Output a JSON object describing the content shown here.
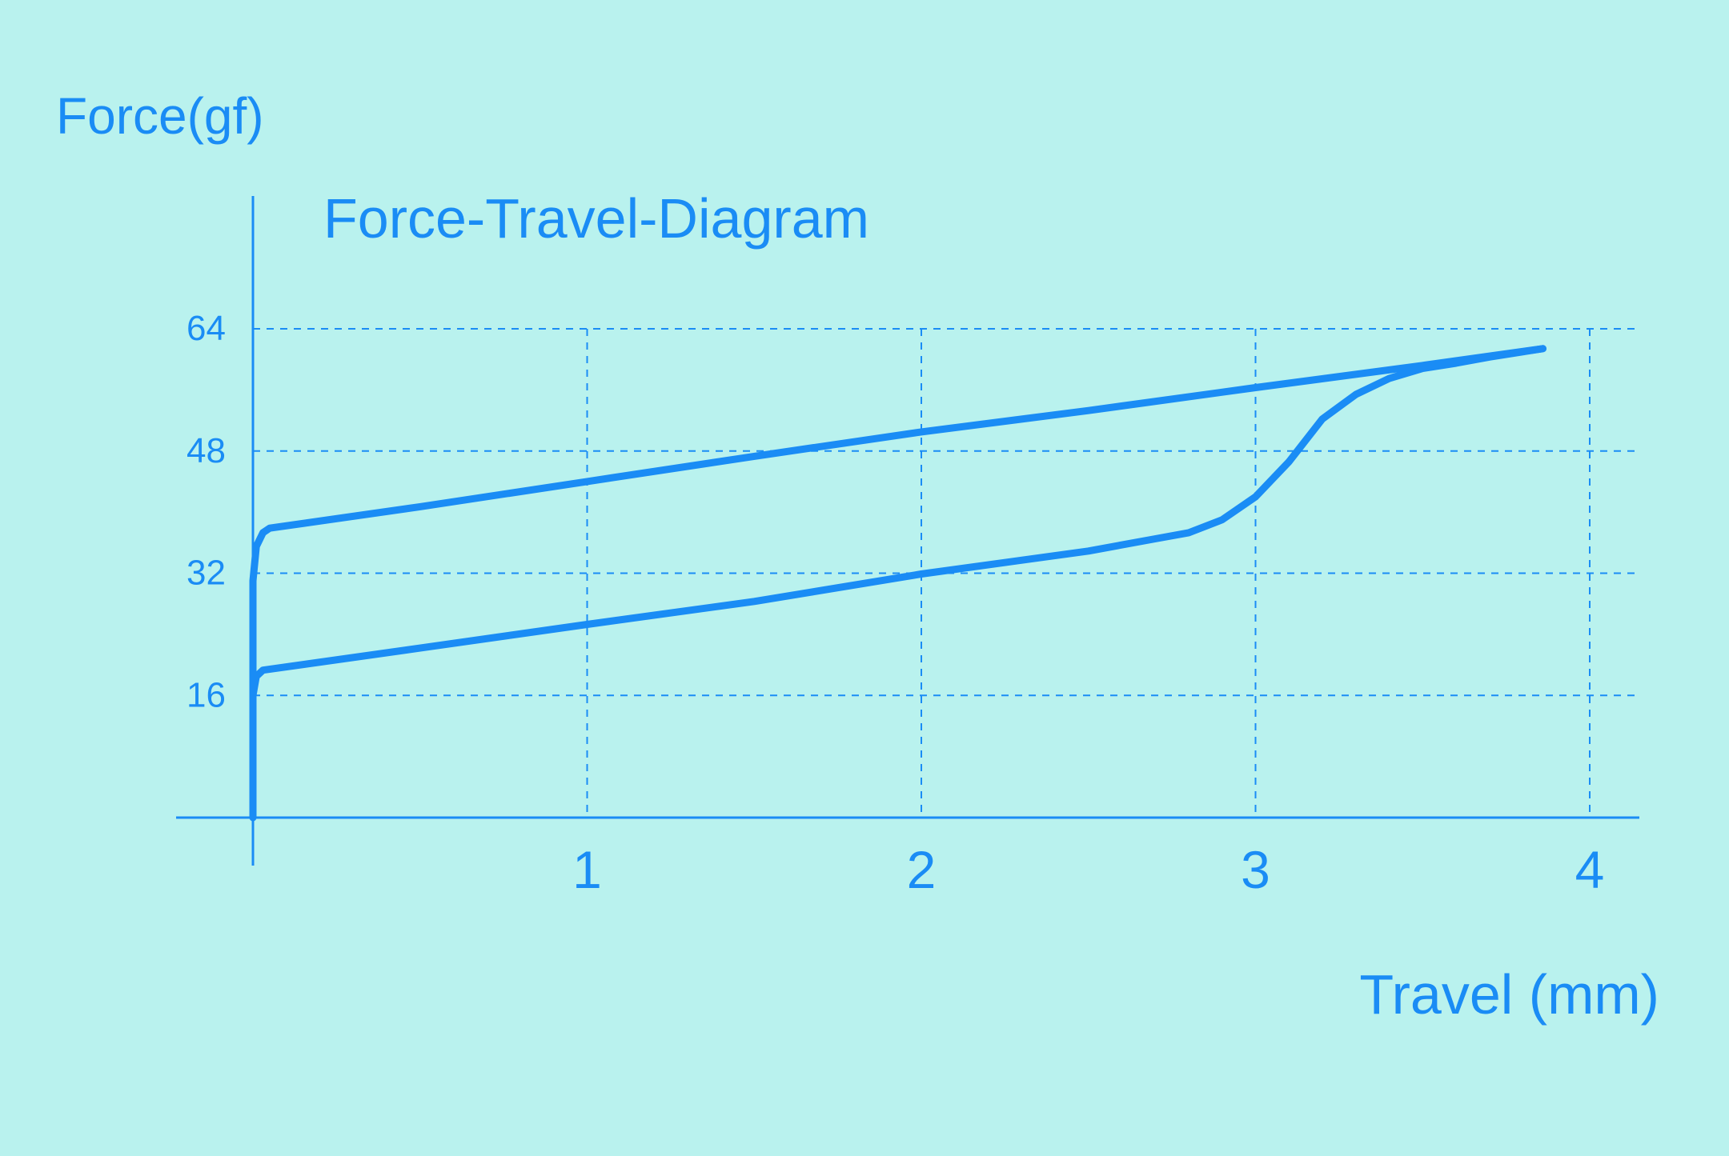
{
  "chart_data": {
    "type": "line",
    "title": "Force-Travel-Diagram",
    "ylabel": "Force(gf)",
    "xlabel": "Travel (mm)",
    "xlim": [
      0,
      4.15
    ],
    "ylim": [
      0,
      64
    ],
    "x_ticks": [
      "1",
      "2",
      "3",
      "4"
    ],
    "y_ticks": [
      "16",
      "32",
      "48",
      "64"
    ],
    "grid": true,
    "line_color": "#1a8cf5",
    "series": [
      {
        "points": [
          [
            0.0,
            0
          ],
          [
            0.0,
            16
          ],
          [
            0.01,
            18.5
          ],
          [
            0.03,
            19.3
          ],
          [
            0.5,
            22.2
          ],
          [
            1.0,
            25.3
          ],
          [
            1.5,
            28.3
          ],
          [
            2.0,
            31.9
          ],
          [
            2.5,
            34.9
          ],
          [
            2.7,
            36.5
          ],
          [
            2.8,
            37.3
          ],
          [
            2.9,
            39.0
          ],
          [
            3.0,
            42.0
          ],
          [
            3.1,
            46.6
          ],
          [
            3.2,
            52.2
          ],
          [
            3.3,
            55.4
          ],
          [
            3.4,
            57.5
          ],
          [
            3.5,
            58.8
          ],
          [
            3.6,
            59.5
          ],
          [
            3.7,
            60.3
          ],
          [
            3.86,
            61.4
          ]
        ]
      },
      {
        "points": [
          [
            0.0,
            0
          ],
          [
            0.0,
            31
          ],
          [
            0.01,
            35.5
          ],
          [
            0.03,
            37.3
          ],
          [
            0.05,
            37.9
          ],
          [
            0.5,
            40.7
          ],
          [
            1.0,
            44.0
          ],
          [
            1.5,
            47.3
          ],
          [
            2.0,
            50.5
          ],
          [
            2.5,
            53.3
          ],
          [
            3.0,
            56.3
          ],
          [
            3.5,
            59.2
          ],
          [
            3.86,
            61.4
          ]
        ]
      }
    ]
  }
}
